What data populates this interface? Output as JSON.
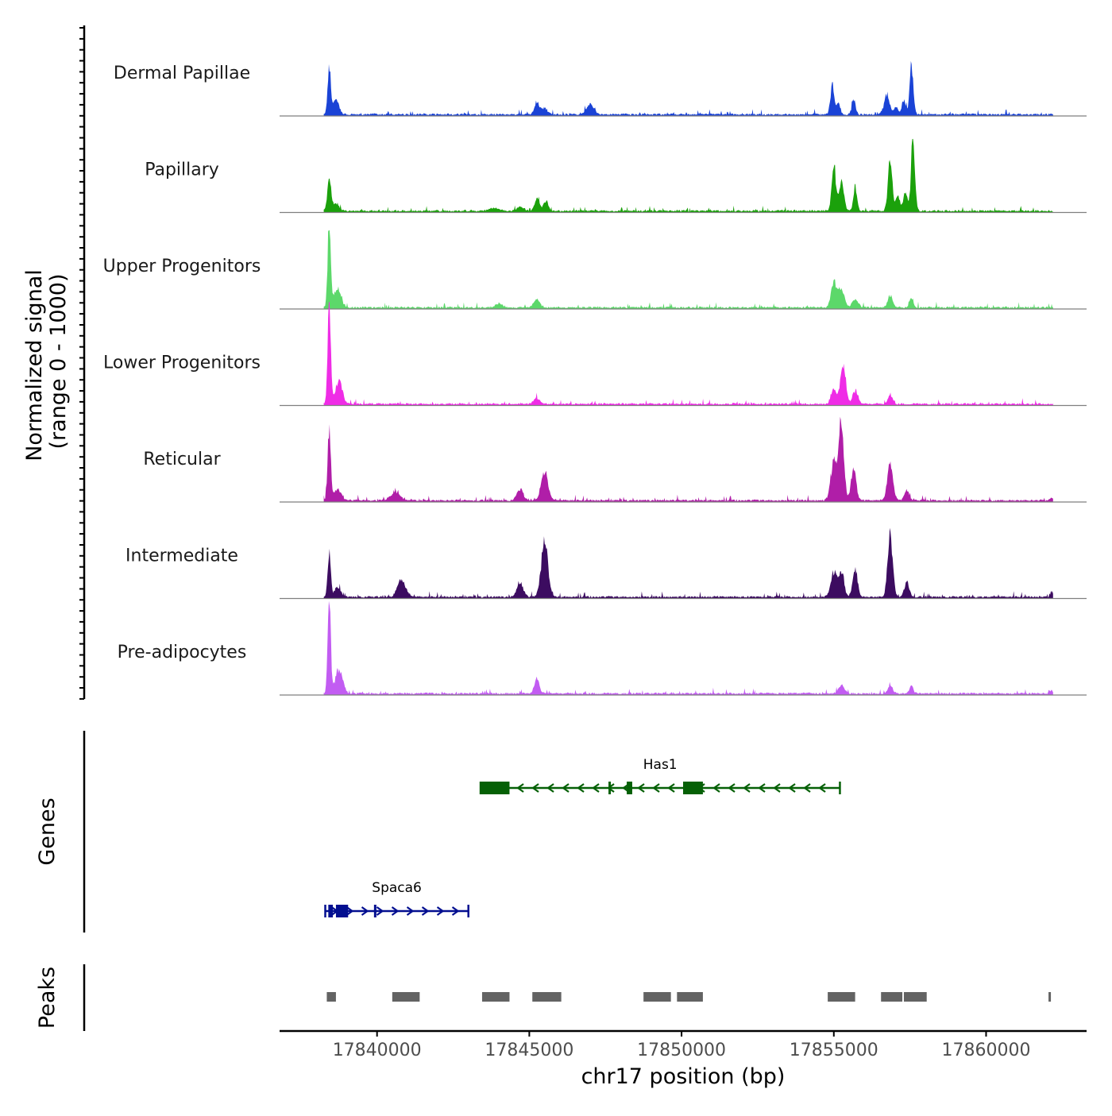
{
  "chart_data": {
    "type": "area",
    "chromosome": "chr17",
    "xlabel": "chr17 position (bp)",
    "xlim": [
      17836800,
      17863300
    ],
    "x_ticks": [
      17840000,
      17845000,
      17850000,
      17855000,
      17860000
    ],
    "x_tick_labels": [
      "17840000",
      "17845000",
      "17850000",
      "17855000",
      "17860000"
    ],
    "coverage": {
      "ylabel_line1": "Normalized signal",
      "ylabel_line2": "(range 0 - 1000)",
      "tracks": [
        {
          "name": "Dermal Papillae",
          "color": "#1a43d6",
          "peaks": [
            [
              17838430,
              0.5,
              50
            ],
            [
              17838650,
              0.15,
              100
            ],
            [
              17845250,
              0.12,
              80
            ],
            [
              17845500,
              0.06,
              100
            ],
            [
              17847000,
              0.1,
              120
            ],
            [
              17854950,
              0.3,
              60
            ],
            [
              17855150,
              0.12,
              60
            ],
            [
              17855650,
              0.15,
              60
            ],
            [
              17856750,
              0.2,
              90
            ],
            [
              17857050,
              0.08,
              60
            ],
            [
              17857550,
              0.52,
              60
            ],
            [
              17857300,
              0.15,
              60
            ]
          ]
        },
        {
          "name": "Papillary",
          "color": "#1ba10b",
          "peaks": [
            [
              17838430,
              0.35,
              60
            ],
            [
              17838650,
              0.08,
              100
            ],
            [
              17845250,
              0.12,
              80
            ],
            [
              17845550,
              0.1,
              80
            ],
            [
              17844700,
              0.04,
              120
            ],
            [
              17855000,
              0.45,
              70
            ],
            [
              17855250,
              0.28,
              80
            ],
            [
              17855700,
              0.25,
              60
            ],
            [
              17856850,
              0.53,
              70
            ],
            [
              17857100,
              0.15,
              60
            ],
            [
              17857600,
              0.78,
              60
            ],
            [
              17857350,
              0.2,
              70
            ],
            [
              17843850,
              0.03,
              150
            ]
          ]
        },
        {
          "name": "Upper Progenitors",
          "color": "#5cd86a",
          "peaks": [
            [
              17838430,
              0.88,
              50
            ],
            [
              17838700,
              0.2,
              110
            ],
            [
              17845250,
              0.08,
              100
            ],
            [
              17844000,
              0.04,
              120
            ],
            [
              17855000,
              0.25,
              90
            ],
            [
              17855250,
              0.2,
              90
            ],
            [
              17855700,
              0.08,
              100
            ],
            [
              17856850,
              0.12,
              80
            ],
            [
              17857550,
              0.1,
              60
            ]
          ]
        },
        {
          "name": "Lower Progenitors",
          "color": "#ef2ce6",
          "peaks": [
            [
              17838430,
              1.1,
              50
            ],
            [
              17838750,
              0.25,
              110
            ],
            [
              17845250,
              0.06,
              100
            ],
            [
              17855000,
              0.15,
              80
            ],
            [
              17855300,
              0.4,
              90
            ],
            [
              17855700,
              0.12,
              90
            ],
            [
              17856850,
              0.1,
              70
            ]
          ]
        },
        {
          "name": "Reticular",
          "color": "#b01ea8",
          "peaks": [
            [
              17838430,
              0.75,
              50
            ],
            [
              17838700,
              0.12,
              120
            ],
            [
              17844700,
              0.12,
              100
            ],
            [
              17845500,
              0.3,
              110
            ],
            [
              17840600,
              0.08,
              150
            ],
            [
              17855000,
              0.4,
              100
            ],
            [
              17855250,
              0.8,
              80
            ],
            [
              17855650,
              0.35,
              80
            ],
            [
              17856850,
              0.4,
              90
            ],
            [
              17857400,
              0.1,
              80
            ],
            [
              17862150,
              0.03,
              40
            ]
          ]
        },
        {
          "name": "Intermediate",
          "color": "#3c0c60",
          "peaks": [
            [
              17838430,
              0.45,
              50
            ],
            [
              17838700,
              0.1,
              100
            ],
            [
              17840800,
              0.18,
              130
            ],
            [
              17844700,
              0.15,
              100
            ],
            [
              17845500,
              0.55,
              110
            ],
            [
              17855000,
              0.25,
              100
            ],
            [
              17855250,
              0.24,
              90
            ],
            [
              17855700,
              0.3,
              80
            ],
            [
              17856850,
              0.66,
              80
            ],
            [
              17857400,
              0.15,
              80
            ],
            [
              17862150,
              0.06,
              40
            ]
          ]
        },
        {
          "name": "Pre-adipocytes",
          "color": "#c25cf2",
          "peaks": [
            [
              17838430,
              0.92,
              50
            ],
            [
              17838750,
              0.25,
              120
            ],
            [
              17845250,
              0.15,
              80
            ],
            [
              17855250,
              0.08,
              100
            ],
            [
              17856850,
              0.08,
              80
            ],
            [
              17857550,
              0.08,
              60
            ],
            [
              17862150,
              0.03,
              40
            ]
          ]
        }
      ]
    },
    "genes": {
      "ylabel": "Genes",
      "items": [
        {
          "name": "Has1",
          "strand": "-",
          "start": 17843400,
          "end": 17855200,
          "color": "#056006",
          "exons": [
            [
              17843400,
              17844350
            ],
            [
              17847600,
              17847650
            ],
            [
              17848200,
              17848380
            ],
            [
              17850050,
              17850700
            ]
          ]
        },
        {
          "name": "Spaca6",
          "strand": "+",
          "start": 17838300,
          "end": 17843000,
          "color": "#030f90",
          "exons": [
            [
              17838400,
              17838550
            ],
            [
              17838650,
              17839050
            ],
            [
              17839900,
              17839950
            ]
          ]
        }
      ]
    },
    "peaks": {
      "ylabel": "Peaks",
      "color": "#636363",
      "regions": [
        [
          17838350,
          17838650
        ],
        [
          17840500,
          17841400
        ],
        [
          17843450,
          17844350
        ],
        [
          17845100,
          17846050
        ],
        [
          17848750,
          17849650
        ],
        [
          17849850,
          17850700
        ],
        [
          17854800,
          17855700
        ],
        [
          17856550,
          17857250
        ],
        [
          17857300,
          17858050
        ],
        [
          17862050,
          17862120
        ]
      ]
    }
  }
}
